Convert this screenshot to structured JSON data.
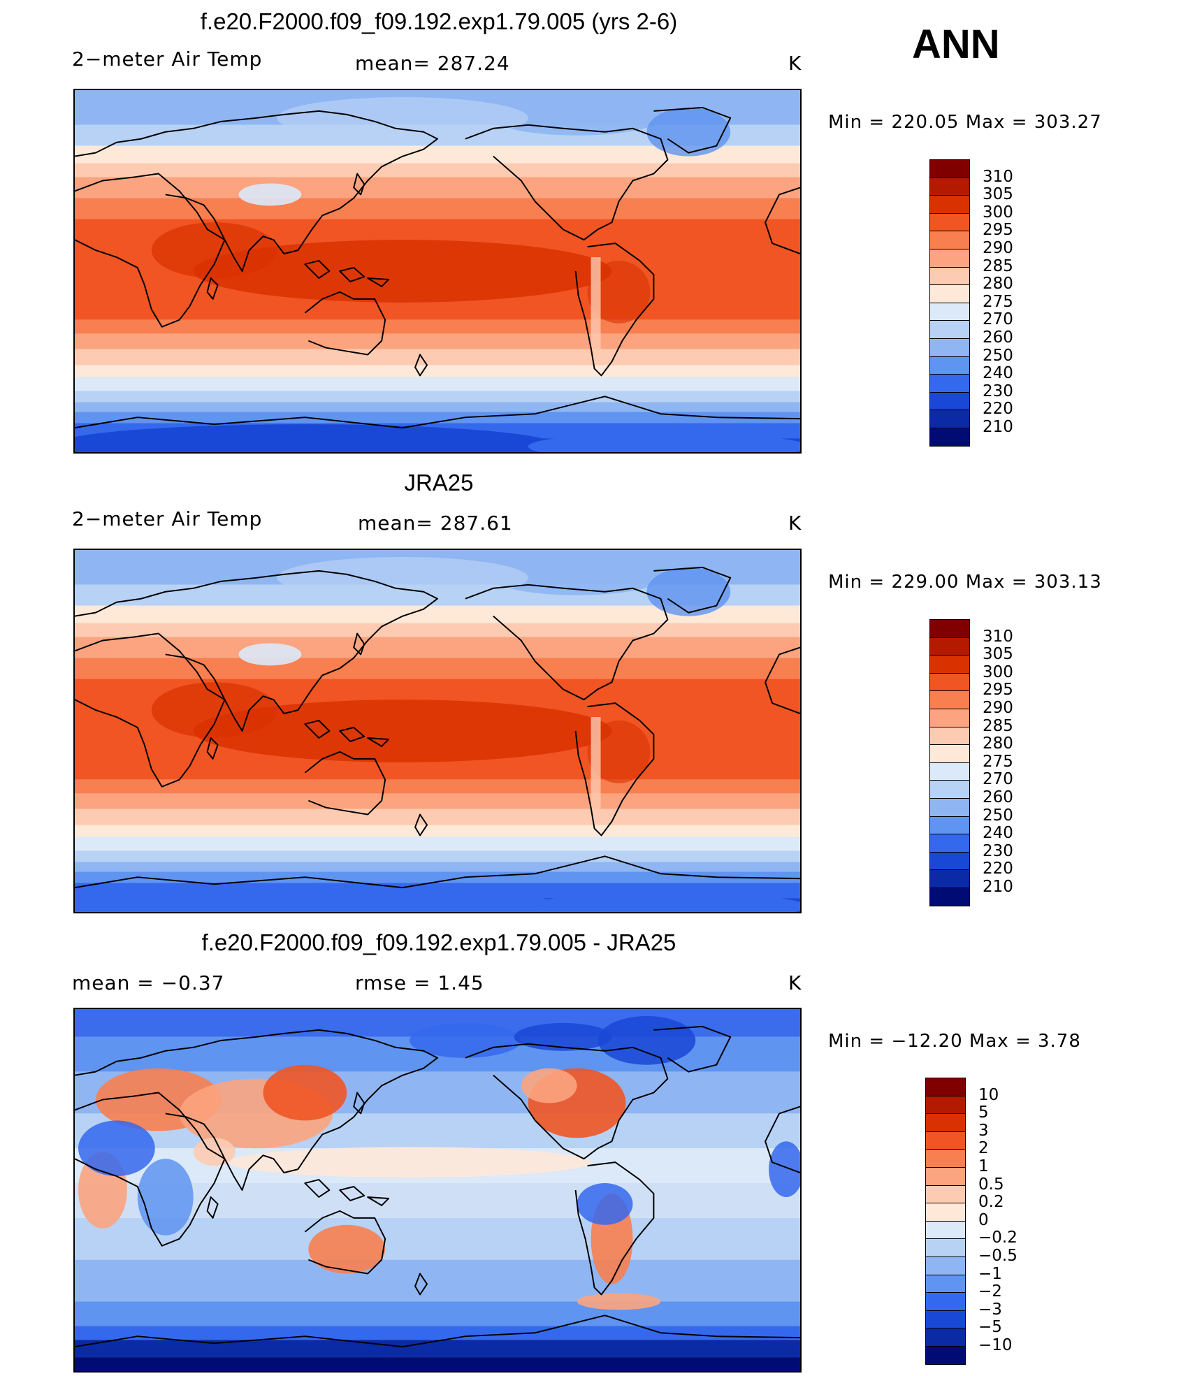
{
  "season": "ANN",
  "panels": [
    {
      "title": "f.e20.F2000.f09_f09.192.exp1.79.005 (yrs 2-6)",
      "left_label": "2−meter Air Temp",
      "center_label": "mean= 287.24",
      "units": "K",
      "minmax": "Min  =  220.05  Max  =  303.27",
      "colorbar": {
        "levels": [
          "310",
          "305",
          "300",
          "295",
          "290",
          "285",
          "280",
          "275",
          "270",
          "260",
          "250",
          "240",
          "230",
          "220",
          "210"
        ],
        "colors": [
          "#800000",
          "#b31a00",
          "#d93200",
          "#f05523",
          "#f77f50",
          "#fba47f",
          "#fdcbb1",
          "#fee8d8",
          "#dbe9f8",
          "#b7d2f5",
          "#8fb6f2",
          "#5f94f0",
          "#3569ed",
          "#1a48d6",
          "#0b2aa5",
          "#000c73"
        ]
      },
      "style": "model"
    },
    {
      "title": "JRA25",
      "left_label": "2−meter Air Temp",
      "center_label": "mean= 287.61",
      "units": "K",
      "minmax": "Min  =  229.00  Max  =  303.13",
      "colorbar": {
        "levels": [
          "310",
          "305",
          "300",
          "295",
          "290",
          "285",
          "280",
          "275",
          "270",
          "260",
          "250",
          "240",
          "230",
          "220",
          "210"
        ],
        "colors": [
          "#800000",
          "#b31a00",
          "#d93200",
          "#f05523",
          "#f77f50",
          "#fba47f",
          "#fdcbb1",
          "#fee8d8",
          "#dbe9f8",
          "#b7d2f5",
          "#8fb6f2",
          "#5f94f0",
          "#3569ed",
          "#1a48d6",
          "#0b2aa5",
          "#000c73"
        ]
      },
      "style": "obs"
    },
    {
      "title": "f.e20.F2000.f09_f09.192.exp1.79.005 - JRA25",
      "left_label": "mean  =    −0.37",
      "center_label": "rmse  =     1.45",
      "units": "K",
      "minmax": "Min  =  −12.20  Max  =       3.78",
      "colorbar": {
        "levels": [
          "10",
          "5",
          "3",
          "2",
          "1",
          "0.5",
          "0.2",
          "0",
          "−0.2",
          "−0.5",
          "−1",
          "−2",
          "−3",
          "−5",
          "−10"
        ],
        "colors": [
          "#800000",
          "#b31a00",
          "#d93200",
          "#f05523",
          "#f77f50",
          "#fba47f",
          "#fdcbb1",
          "#fee8d8",
          "#dbe9f8",
          "#b7d2f5",
          "#8fb6f2",
          "#5f94f0",
          "#3569ed",
          "#1a48d6",
          "#0b2aa5",
          "#000c73"
        ]
      },
      "style": "diff"
    }
  ]
}
